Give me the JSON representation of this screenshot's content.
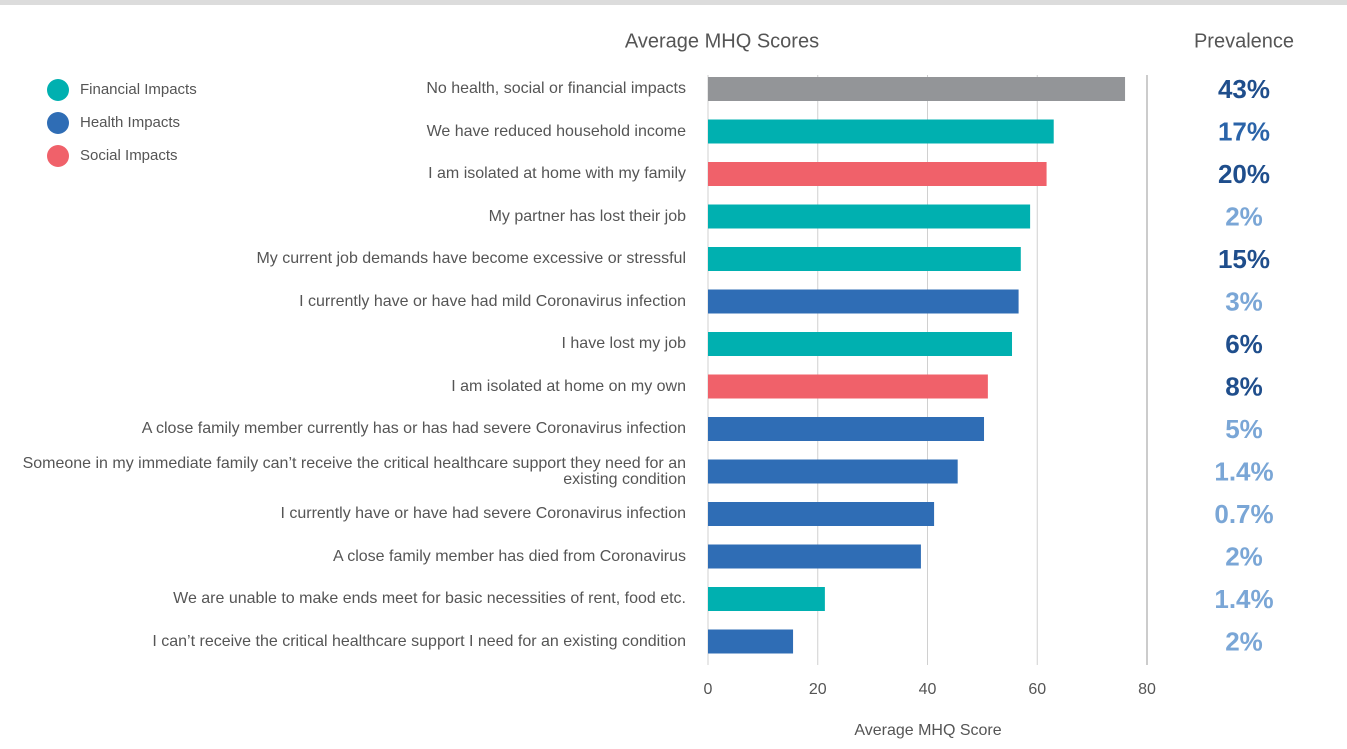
{
  "chart_data": {
    "type": "bar",
    "orientation": "horizontal",
    "title": "Average MHQ Scores",
    "xlabel": "Average MHQ Score",
    "categories": [
      "No health, social or financial impacts",
      "We have reduced household income",
      "I am isolated at home with my family",
      "My partner has lost their job",
      "My current job demands have become excessive or stressful",
      "I currently have or have had mild Coronavirus infection",
      "I have lost my job",
      "I am isolated at home on my own",
      "A close family member currently has or has had severe Coronavirus infection",
      "Someone in my immediate family can’t receive the critical healthcare support they need for an existing condition",
      "I currently have or have had severe Coronavirus infection",
      "A close family member has died from Coronavirus",
      "We are unable to make ends meet for basic necessities of rent, food etc.",
      "I can’t receive the critical healthcare support I need for an existing condition"
    ],
    "values": [
      76,
      63,
      61.7,
      58.7,
      57,
      56.6,
      55.4,
      51,
      50.3,
      45.5,
      41.2,
      38.8,
      21.3,
      15.5
    ],
    "colors": [
      "#939598",
      "#00b0b0",
      "#f0616a",
      "#00b0b0",
      "#00b0b0",
      "#2f6db5",
      "#00b0b0",
      "#f0616a",
      "#2f6db5",
      "#2f6db5",
      "#2f6db5",
      "#2f6db5",
      "#00b0b0",
      "#2f6db5"
    ],
    "legend": [
      {
        "name": "Financial Impacts",
        "color": "#00b0b0"
      },
      {
        "name": "Health Impacts",
        "color": "#2f6db5"
      },
      {
        "name": "Social Impacts",
        "color": "#f0616a"
      }
    ],
    "xlim": [
      0,
      80
    ],
    "xticks": [
      0,
      20,
      40,
      60,
      80
    ],
    "grid": true,
    "prevalence": {
      "title": "Prevalence",
      "values": [
        43,
        17,
        20,
        2,
        15,
        3,
        6,
        8,
        5,
        1.4,
        0.7,
        2,
        1.4,
        2
      ],
      "value_labels": [
        "43%",
        "17%",
        "20%",
        "2%",
        "15%",
        "3%",
        "6%",
        "8%",
        "5%",
        "1.4%",
        "0.7%",
        "2%",
        "1.4%",
        "2%"
      ],
      "colors": [
        "#1f4e8c",
        "#2a63a8",
        "#1f4e8c",
        "#7aa6d6",
        "#1f4e8c",
        "#7aa6d6",
        "#1f4e8c",
        "#1f4e8c",
        "#7aa6d6",
        "#7aa6d6",
        "#7aa6d6",
        "#7aa6d6",
        "#7aa6d6",
        "#7aa6d6"
      ]
    }
  }
}
